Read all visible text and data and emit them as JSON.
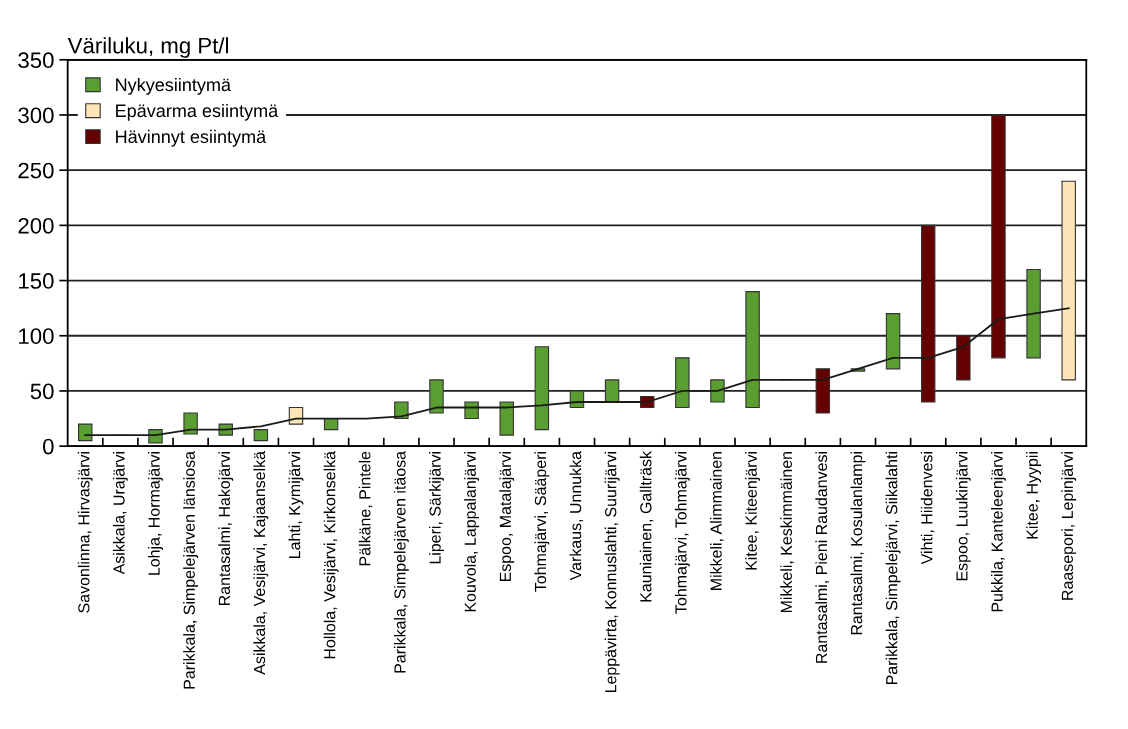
{
  "chart_data": {
    "type": "bar",
    "ylabel": "Väriluku, mg Pt/l",
    "categories": [
      "Savonlinna, Hirvasjärvi",
      "Asikkala, Urajärvi",
      "Lohja, Hormajärvi",
      "Parikkala, Simpelejärven länsiosa",
      "Rantasalmi, Hakojärvi",
      "Asikkala, Vesijärvi, Kajaanselkä",
      "Lahti, Kymijärvi",
      "Hollola, Vesijärvi, Kirkonselkä",
      "Pälkäne, Pintele",
      "Parikkala, Simpelejärven itäosa",
      "Liperi, Särkijärvi",
      "Kouvola, Lappalanjärvi",
      "Espoo, Matalajärvi",
      "Tohmajärvi, Sääperi",
      "Varkaus, Unnukka",
      "Leppävirta, Konnuslahti, Suurijärvi",
      "Kauniainen, Gallträsk",
      "Tohmajärvi, Tohmajärvi",
      "Mikkeli, Alimmainen",
      "Kitee, Kiteenjärvi",
      "Mikkeli, Keskimmäinen",
      "Rantasalmi, Pieni Raudanvesi",
      "Rantasalmi, Kosulanlampi",
      "Parikkala, Simpelejärvi, Siikalahti",
      "Vihti, Hiidenvesi",
      "Espoo, Luukinjärvi",
      "Pukkila, Kanteleenjärvi",
      "Kitee, Hyypii",
      "Raasepori, Lepinjärvi"
    ],
    "series": [
      {
        "name": "Nykyesiintymä",
        "color": "#5a9e32",
        "base": [
          5,
          10,
          3,
          11,
          10,
          5,
          null,
          15,
          25,
          25,
          30,
          25,
          10,
          15,
          35,
          40,
          null,
          35,
          40,
          35,
          60,
          null,
          68,
          70,
          null,
          null,
          null,
          80,
          null
        ],
        "values": [
          15,
          0,
          12,
          19,
          10,
          10,
          null,
          10,
          0,
          15,
          30,
          15,
          30,
          75,
          15,
          20,
          null,
          45,
          20,
          105,
          0,
          null,
          2,
          50,
          null,
          null,
          null,
          80,
          null
        ]
      },
      {
        "name": "Epävarma esiintymä",
        "color": "#ffe4b8",
        "base": [
          null,
          null,
          null,
          null,
          null,
          null,
          20,
          null,
          null,
          null,
          null,
          null,
          null,
          null,
          null,
          null,
          null,
          null,
          null,
          null,
          null,
          null,
          null,
          null,
          null,
          null,
          null,
          null,
          60
        ],
        "values": [
          null,
          null,
          null,
          null,
          null,
          null,
          15,
          null,
          null,
          null,
          null,
          null,
          null,
          null,
          null,
          null,
          null,
          null,
          null,
          null,
          null,
          null,
          null,
          null,
          null,
          null,
          null,
          null,
          180
        ]
      },
      {
        "name": "Hävinnyt esiintymä",
        "color": "#660000",
        "base": [
          null,
          null,
          null,
          null,
          null,
          null,
          null,
          null,
          null,
          null,
          null,
          null,
          null,
          null,
          null,
          null,
          35,
          null,
          null,
          null,
          null,
          30,
          null,
          null,
          40,
          60,
          80,
          null,
          null
        ],
        "values": [
          null,
          null,
          null,
          null,
          null,
          null,
          null,
          null,
          null,
          null,
          null,
          null,
          null,
          null,
          null,
          null,
          10,
          null,
          null,
          null,
          null,
          40,
          null,
          null,
          160,
          40,
          220,
          null,
          null
        ]
      },
      {
        "type": "line",
        "color": "#1a1a1a",
        "values": [
          10,
          10,
          10,
          15,
          15,
          18,
          25,
          25,
          25,
          27,
          35,
          35,
          35,
          37,
          40,
          40,
          40,
          50,
          50,
          60,
          60,
          60,
          70,
          80,
          80,
          90,
          115,
          120,
          125
        ]
      }
    ],
    "ylim": [
      0,
      350
    ],
    "yticks": [
      0,
      50,
      100,
      150,
      200,
      250,
      300,
      350
    ],
    "grid": "y",
    "legend": "top left",
    "marker": "none",
    "line_style": "solid"
  }
}
